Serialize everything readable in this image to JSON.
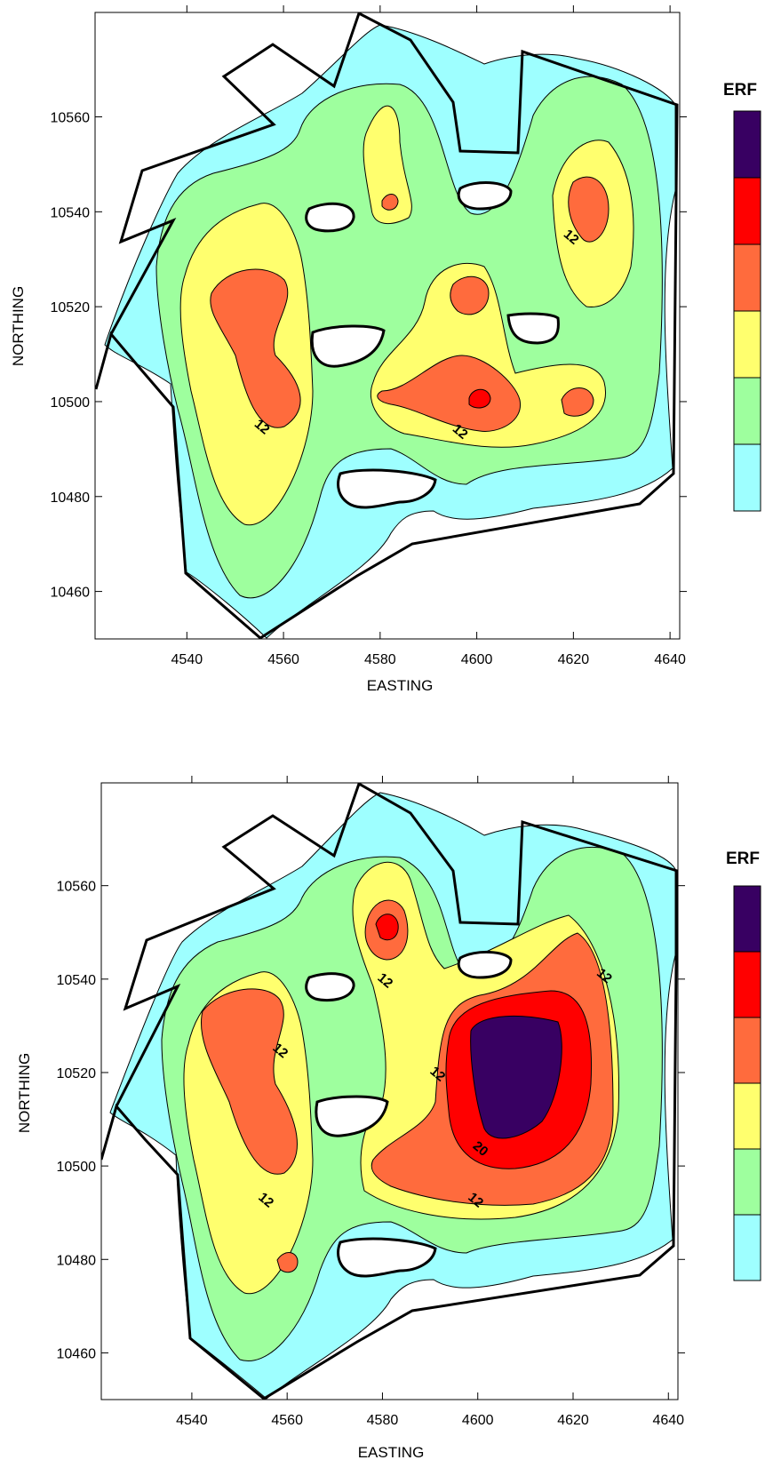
{
  "colors": {
    "level_0": "#9effff",
    "level_1": "#9eff9e",
    "level_2": "#ffff6e",
    "level_3": "#ff6b3d",
    "level_4": "#ff0000",
    "level_5": "#380062"
  },
  "chart_data": [
    {
      "type": "contour",
      "title": "",
      "xlabel": "EASTING",
      "ylabel": "NORTHING",
      "xlim": [
        4521,
        4642
      ],
      "ylim": [
        10450,
        10582
      ],
      "xticks": [
        4540,
        4560,
        4580,
        4600,
        4620,
        4640
      ],
      "yticks": [
        10460,
        10480,
        10500,
        10520,
        10540,
        10560
      ],
      "xtick_labels": [
        "4540",
        "4560",
        "4580",
        "4600",
        "4620",
        "4640"
      ],
      "ytick_labels": [
        "10460",
        "10480",
        "10500",
        "10520",
        "10540",
        "10560"
      ],
      "legend_title": "ERF",
      "levels": [
        0,
        4,
        8,
        12,
        16,
        20,
        24
      ],
      "contour_labels": [
        {
          "text": "12",
          "x": 4555,
          "y": 10494
        },
        {
          "text": "12",
          "x": 4596,
          "y": 10493
        },
        {
          "text": "12",
          "x": 4619,
          "y": 10534
        }
      ],
      "peaks": [
        {
          "x": 4554,
          "y": 10510,
          "value": 14
        },
        {
          "x": 4599,
          "y": 10499,
          "value": 16
        },
        {
          "x": 4621,
          "y": 10538,
          "value": 13
        },
        {
          "x": 4580,
          "y": 10541,
          "value": 13
        },
        {
          "x": 4597,
          "y": 10521,
          "value": 12.5
        },
        {
          "x": 4619,
          "y": 10500,
          "value": 13
        }
      ]
    },
    {
      "type": "contour",
      "title": "",
      "xlabel": "EASTING",
      "ylabel": "NORTHING",
      "xlim": [
        4521,
        4642
      ],
      "ylim": [
        10450,
        10582
      ],
      "xticks": [
        4540,
        4560,
        4580,
        4600,
        4620,
        4640
      ],
      "yticks": [
        10460,
        10480,
        10500,
        10520,
        10540,
        10560
      ],
      "xtick_labels": [
        "4540",
        "4560",
        "4580",
        "4600",
        "4620",
        "4640"
      ],
      "ytick_labels": [
        "10460",
        "10480",
        "10500",
        "10520",
        "10540",
        "10560"
      ],
      "legend_title": "ERF",
      "levels": [
        0,
        4,
        8,
        12,
        16,
        20,
        24
      ],
      "contour_labels": [
        {
          "text": "12",
          "x": 4558,
          "y": 10524
        },
        {
          "text": "12",
          "x": 4555,
          "y": 10492
        },
        {
          "text": "12",
          "x": 4580,
          "y": 10539
        },
        {
          "text": "12",
          "x": 4591,
          "y": 10519
        },
        {
          "text": "12",
          "x": 4599,
          "y": 10492
        },
        {
          "text": "12",
          "x": 4626,
          "y": 10540
        },
        {
          "text": "20",
          "x": 4600,
          "y": 10503
        }
      ],
      "peaks": [
        {
          "x": 4552,
          "y": 10516,
          "value": 14
        },
        {
          "x": 4581,
          "y": 10541,
          "value": 16.5
        },
        {
          "x": 4607,
          "y": 10512,
          "value": 22
        },
        {
          "x": 4558,
          "y": 10481,
          "value": 13
        }
      ]
    }
  ]
}
